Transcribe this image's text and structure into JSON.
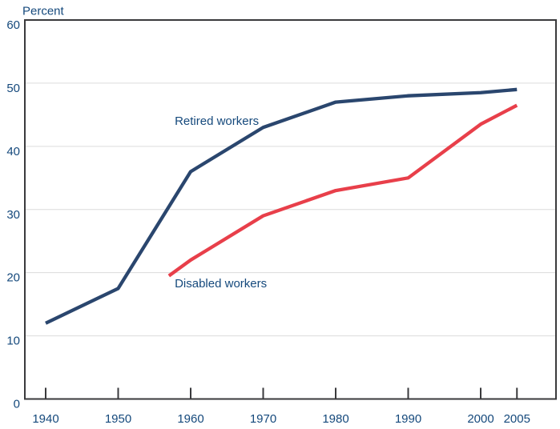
{
  "chart_data": {
    "type": "line",
    "title": "",
    "y_axis": {
      "label": "Percent",
      "min": 0,
      "max": 60,
      "tick_step": 10,
      "ticks": [
        0,
        10,
        20,
        30,
        40,
        50,
        60
      ]
    },
    "x_axis": {
      "min": 1940,
      "max": 2010,
      "ticks": [
        1940,
        1950,
        1960,
        1970,
        1980,
        1990,
        2000,
        2005
      ]
    },
    "grid": "horizontal-light",
    "legend": "inline-series-labels",
    "series": [
      {
        "name": "Retired workers",
        "color": "#2A466E",
        "x": [
          1940,
          1950,
          1960,
          1970,
          1980,
          1990,
          2000,
          2005
        ],
        "values": [
          12,
          17.5,
          36,
          43,
          47,
          48,
          48.5,
          49
        ]
      },
      {
        "name": "Disabled workers",
        "color": "#E83F4A",
        "x": [
          1957,
          1960,
          1970,
          1980,
          1990,
          2000,
          2005
        ],
        "values": [
          19.5,
          22,
          29,
          33,
          35,
          43.5,
          46.5
        ]
      }
    ],
    "annotations": [
      {
        "text": "Retired workers",
        "year": 1957.8,
        "value": 43.4
      },
      {
        "text": "Disabled workers",
        "year": 1957.8,
        "value": 17.7
      }
    ],
    "colors": {
      "axis": "#3A3A3C",
      "grid": "#DCDCDC",
      "text": "#15497C",
      "background": "#FFFFFF"
    }
  }
}
